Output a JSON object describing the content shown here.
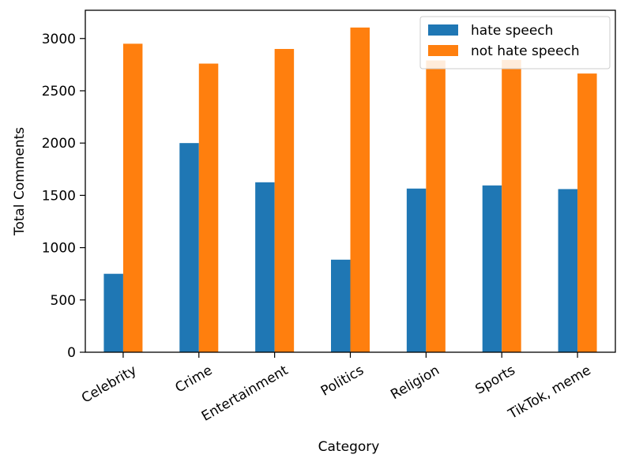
{
  "chart_data": {
    "type": "bar",
    "categories": [
      "Celebrity",
      "Crime",
      "Entertainment",
      "Politics",
      "Religion",
      "Sports",
      "TikTok, meme"
    ],
    "series": [
      {
        "name": "hate speech",
        "color": "#1f77b4",
        "values": [
          750,
          2000,
          1625,
          885,
          1565,
          1595,
          1560
        ]
      },
      {
        "name": "not hate speech",
        "color": "#ff7f0e",
        "values": [
          2950,
          2760,
          2900,
          3105,
          2790,
          2795,
          2665
        ]
      }
    ],
    "title": "",
    "xlabel": "Category",
    "ylabel": "Total Comments",
    "ylim": [
      0,
      3270
    ],
    "yticks": [
      0,
      500,
      1000,
      1500,
      2000,
      2500,
      3000
    ],
    "grid": false,
    "legend_position": "top-right",
    "xtick_rotation": -30
  }
}
